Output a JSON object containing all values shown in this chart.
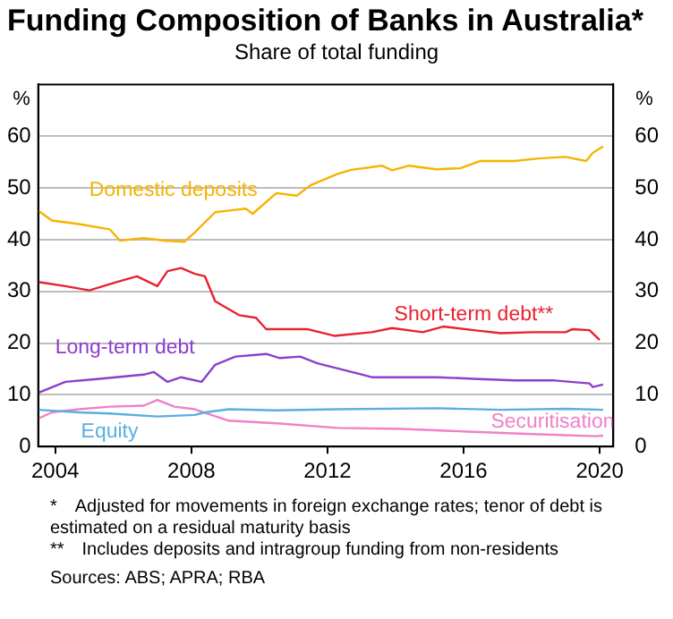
{
  "chart_data": {
    "type": "line",
    "title": "Funding Composition of Banks in Australia*",
    "subtitle": "Share of total funding",
    "ylabel": "%",
    "y2label": "%",
    "xlim": [
      2003.5,
      2020.4
    ],
    "xticks": [
      2004,
      2008,
      2012,
      2016,
      2020
    ],
    "ylim": [
      0,
      70
    ],
    "yticks": [
      0,
      10,
      20,
      30,
      40,
      50,
      60
    ],
    "y2lim": [
      0,
      70
    ],
    "y2ticks": [
      0,
      10,
      20,
      30,
      40,
      50,
      60
    ],
    "grid": "y",
    "series": [
      {
        "name": "Domestic deposits",
        "color": "#f5b400",
        "x": [
          2003.5,
          2003.9,
          2004.7,
          2005.6,
          2005.9,
          2006.6,
          2007.2,
          2007.8,
          2008.1,
          2008.7,
          2009.6,
          2009.8,
          2010.5,
          2011.1,
          2011.5,
          2012.3,
          2012.7,
          2013.6,
          2013.9,
          2014.4,
          2015.2,
          2015.9,
          2016.5,
          2017.5,
          2018.2,
          2019.0,
          2019.6,
          2019.8,
          2020.1
        ],
        "values": [
          45.6,
          43.7,
          43,
          42,
          39.8,
          40.3,
          39.8,
          39.6,
          41.4,
          45.3,
          46,
          45,
          49,
          48.5,
          50.5,
          52.7,
          53.5,
          54.3,
          53.4,
          54.3,
          53.6,
          53.8,
          55.2,
          55.2,
          55.7,
          56,
          55.2,
          56.8,
          58
        ]
      },
      {
        "name": "Short-term debt**",
        "color": "#e8222f",
        "x": [
          2003.5,
          2004.3,
          2005.0,
          2005.8,
          2006.4,
          2007.0,
          2007.3,
          2007.7,
          2008.1,
          2008.4,
          2008.7,
          2009.4,
          2009.9,
          2010.2,
          2011.4,
          2012.2,
          2013.3,
          2013.9,
          2014.8,
          2015.4,
          2016.3,
          2017.1,
          2018.0,
          2019.0,
          2019.2,
          2019.7,
          2020.0
        ],
        "values": [
          31.8,
          31,
          30.2,
          31.8,
          32.9,
          31,
          33.9,
          34.5,
          33.4,
          32.9,
          28.1,
          25.4,
          24.9,
          22.7,
          22.7,
          21.4,
          22.1,
          22.9,
          22.1,
          23.2,
          22.5,
          21.9,
          22.1,
          22.1,
          22.7,
          22.5,
          20.6
        ]
      },
      {
        "name": "Long-term debt",
        "color": "#8c3ecc",
        "x": [
          2003.5,
          2004.3,
          2005.3,
          2006.6,
          2006.9,
          2007.3,
          2007.7,
          2008.3,
          2008.7,
          2009.3,
          2010.2,
          2010.6,
          2011.2,
          2011.7,
          2012.9,
          2013.3,
          2015.2,
          2016.3,
          2017.5,
          2018.6,
          2019.7,
          2019.8,
          2020.1
        ],
        "values": [
          10.4,
          12.5,
          13.1,
          13.9,
          14.4,
          12.5,
          13.4,
          12.5,
          15.8,
          17.4,
          17.9,
          17.1,
          17.4,
          16.1,
          14.1,
          13.4,
          13.4,
          13.1,
          12.8,
          12.8,
          12.2,
          11.5,
          12
        ]
      },
      {
        "name": "Equity",
        "color": "#5aaee0",
        "x": [
          2003.5,
          2004.7,
          2005.6,
          2007.0,
          2008.1,
          2008.4,
          2009.1,
          2010.5,
          2012.3,
          2015.2,
          2017.1,
          2019.0,
          2020.1
        ],
        "values": [
          7.1,
          6.6,
          6.4,
          5.8,
          6.1,
          6.6,
          7.2,
          7,
          7.2,
          7.4,
          7.1,
          7.3,
          7.1
        ]
      },
      {
        "name": "Securitisation",
        "color": "#f080c8",
        "x": [
          2003.5,
          2003.9,
          2004.7,
          2005.6,
          2006.6,
          2007.0,
          2007.5,
          2008.1,
          2009.1,
          2010.5,
          2012.3,
          2014.2,
          2016.1,
          2018.0,
          2019.9,
          2020.1
        ],
        "values": [
          5.4,
          6.6,
          7.2,
          7.7,
          7.9,
          9,
          7.7,
          7.2,
          5,
          4.5,
          3.6,
          3.4,
          2.9,
          2.4,
          2,
          2.1
        ]
      }
    ],
    "annotations": [
      "* Adjusted for movements in foreign exchange rates; tenor of debt is estimated on a residual maturity basis",
      "** Includes deposits and intragroup funding from non-residents",
      "Sources: ABS; APRA; RBA"
    ]
  }
}
